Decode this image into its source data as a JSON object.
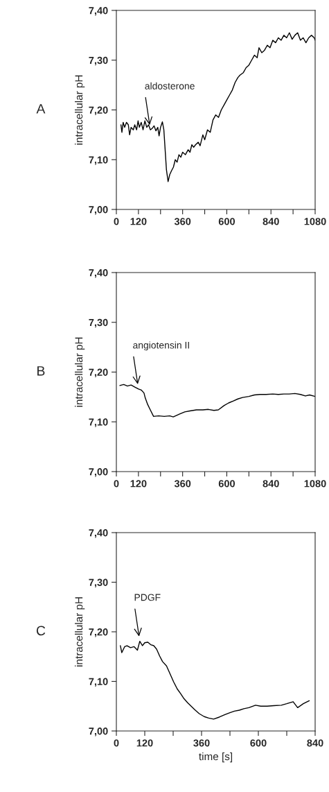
{
  "chart_data": [
    {
      "type": "line",
      "ylabel": "intracellular pH",
      "annotations": [
        "A",
        {
          "text": "aldosterone",
          "x": 185,
          "y": 7.16
        }
      ],
      "xlim": [
        0,
        1080
      ],
      "ylim": [
        7.0,
        7.4
      ],
      "xticks": [
        0,
        120,
        {
          "value": 240,
          "label": null
        },
        360,
        {
          "value": 480,
          "label": null
        },
        600,
        {
          "value": 720,
          "label": null
        },
        840,
        {
          "value": 960,
          "label": null
        },
        1080
      ],
      "yticks": [
        {
          "value": 7.0,
          "label": "7,00"
        },
        {
          "value": 7.1,
          "label": "7,10"
        },
        {
          "value": 7.2,
          "label": "7,20"
        },
        {
          "value": 7.3,
          "label": "7,30"
        },
        {
          "value": 7.4,
          "label": "7,40"
        }
      ],
      "grid": false,
      "marker": "none",
      "line_style": "solid",
      "series": [
        {
          "color": "#000000",
          "x": [
            25,
            30,
            37,
            45,
            55,
            65,
            72,
            80,
            92,
            100,
            110,
            118,
            125,
            135,
            145,
            155,
            165,
            175,
            185,
            195,
            205,
            215,
            225,
            232,
            240,
            250,
            258,
            265,
            272,
            281,
            290,
            300,
            310,
            320,
            330,
            340,
            350,
            360,
            375,
            390,
            400,
            410,
            420,
            430,
            445,
            455,
            470,
            480,
            495,
            510,
            525,
            540,
            555,
            570,
            585,
            600,
            615,
            630,
            645,
            660,
            672,
            690,
            705,
            720,
            735,
            750,
            765,
            775,
            790,
            805,
            820,
            835,
            850,
            865,
            880,
            895,
            910,
            925,
            940,
            955,
            970,
            985,
            1000,
            1015,
            1030,
            1045,
            1060,
            1075,
            1080
          ],
          "values": [
            7.17,
            7.155,
            7.175,
            7.165,
            7.175,
            7.17,
            7.15,
            7.165,
            7.16,
            7.17,
            7.16,
            7.178,
            7.165,
            7.175,
            7.16,
            7.178,
            7.165,
            7.17,
            7.16,
            7.163,
            7.168,
            7.158,
            7.165,
            7.148,
            7.165,
            7.176,
            7.16,
            7.12,
            7.08,
            7.056,
            7.07,
            7.078,
            7.085,
            7.1,
            7.095,
            7.11,
            7.105,
            7.115,
            7.11,
            7.12,
            7.115,
            7.13,
            7.125,
            7.13,
            7.135,
            7.128,
            7.15,
            7.14,
            7.16,
            7.155,
            7.18,
            7.19,
            7.185,
            7.2,
            7.21,
            7.22,
            7.23,
            7.24,
            7.255,
            7.265,
            7.27,
            7.275,
            7.285,
            7.29,
            7.3,
            7.31,
            7.305,
            7.325,
            7.315,
            7.32,
            7.33,
            7.325,
            7.34,
            7.335,
            7.345,
            7.34,
            7.35,
            7.345,
            7.355,
            7.342,
            7.35,
            7.355,
            7.34,
            7.345,
            7.335,
            7.345,
            7.35,
            7.345,
            7.34
          ]
        }
      ]
    },
    {
      "type": "line",
      "ylabel": "intracellular pH",
      "annotations": [
        "B",
        {
          "text": "angiotensin II",
          "x": 120,
          "y": 7.166
        }
      ],
      "xlim": [
        0,
        1080
      ],
      "ylim": [
        7.0,
        7.4
      ],
      "xticks": [
        0,
        120,
        {
          "value": 240,
          "label": null
        },
        360,
        {
          "value": 480,
          "label": null
        },
        600,
        {
          "value": 720,
          "label": null
        },
        840,
        {
          "value": 960,
          "label": null
        },
        1080
      ],
      "yticks": [
        {
          "value": 7.0,
          "label": "7,00"
        },
        {
          "value": 7.1,
          "label": "7,10"
        },
        {
          "value": 7.2,
          "label": "7,20"
        },
        {
          "value": 7.3,
          "label": "7,30"
        },
        {
          "value": 7.4,
          "label": "7,40"
        }
      ],
      "grid": false,
      "marker": "none",
      "line_style": "solid",
      "series": [
        {
          "color": "#000000",
          "x": [
            19,
            40,
            60,
            80,
            100,
            120,
            135,
            150,
            157,
            170,
            183,
            202,
            230,
            260,
            290,
            309,
            340,
            372,
            400,
            435,
            470,
            500,
            530,
            554,
            586,
            610,
            636,
            660,
            686,
            720,
            750,
            780,
            813,
            850,
            880,
            910,
            939,
            970,
            1000,
            1027,
            1050,
            1080
          ],
          "values": [
            7.173,
            7.175,
            7.172,
            7.174,
            7.17,
            7.166,
            7.164,
            7.158,
            7.148,
            7.135,
            7.125,
            7.111,
            7.112,
            7.111,
            7.112,
            7.11,
            7.115,
            7.12,
            7.122,
            7.124,
            7.124,
            7.125,
            7.123,
            7.124,
            7.133,
            7.138,
            7.142,
            7.146,
            7.149,
            7.151,
            7.154,
            7.155,
            7.155,
            7.156,
            7.155,
            7.156,
            7.156,
            7.157,
            7.155,
            7.152,
            7.154,
            7.151
          ]
        }
      ]
    },
    {
      "type": "line",
      "ylabel": "intracellular pH",
      "xlabel": "time [s]",
      "annotations": [
        "C",
        {
          "text": "PDGF",
          "x": 99,
          "y": 7.181
        }
      ],
      "xlim": [
        0,
        840
      ],
      "ylim": [
        7.0,
        7.4
      ],
      "xticks": [
        0,
        120,
        {
          "value": 240,
          "label": null
        },
        360,
        {
          "value": 480,
          "label": null
        },
        600,
        {
          "value": 720,
          "label": null
        },
        840
      ],
      "yticks": [
        {
          "value": 7.0,
          "label": "7,00"
        },
        {
          "value": 7.1,
          "label": "7,10"
        },
        {
          "value": 7.2,
          "label": "7,20"
        },
        {
          "value": 7.3,
          "label": "7,30"
        },
        {
          "value": 7.4,
          "label": "7,40"
        }
      ],
      "grid": false,
      "marker": "none",
      "line_style": "solid",
      "series": [
        {
          "color": "#000000",
          "x": [
            17,
            23,
            35,
            45,
            60,
            75,
            89,
            99,
            110,
            120,
            133,
            145,
            158,
            170,
            183,
            195,
            212,
            227,
            242,
            257,
            272,
            286,
            301,
            316,
            331,
            350,
            371,
            390,
            411,
            435,
            459,
            480,
            499,
            520,
            539,
            560,
            588,
            610,
            637,
            665,
            697,
            720,
            747,
            766,
            790,
            815
          ],
          "values": [
            7.172,
            7.158,
            7.17,
            7.172,
            7.168,
            7.17,
            7.163,
            7.181,
            7.172,
            7.178,
            7.179,
            7.174,
            7.172,
            7.165,
            7.151,
            7.14,
            7.131,
            7.115,
            7.099,
            7.085,
            7.075,
            7.065,
            7.057,
            7.05,
            7.043,
            7.035,
            7.029,
            7.026,
            7.024,
            7.028,
            7.033,
            7.037,
            7.04,
            7.042,
            7.045,
            7.047,
            7.052,
            7.05,
            7.05,
            7.051,
            7.052,
            7.055,
            7.059,
            7.047,
            7.055,
            7.061
          ]
        }
      ]
    }
  ]
}
